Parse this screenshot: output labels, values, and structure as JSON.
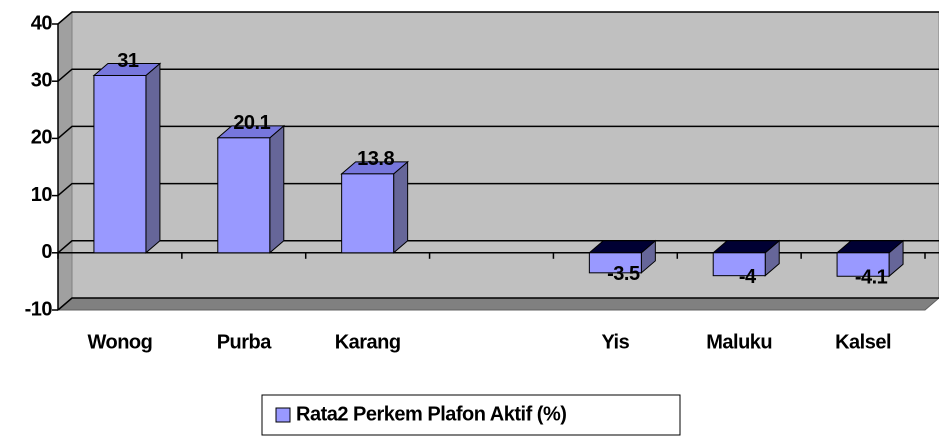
{
  "chart_data": {
    "type": "bar3d",
    "categories": [
      "Wonog",
      "Purba",
      "Karang",
      null,
      "Yis",
      "Maluku",
      "Kalsel"
    ],
    "series": [
      {
        "name": "Rata2 Perkem Plafon Aktif (%)",
        "color": "#9999ff",
        "values": [
          31,
          20.1,
          13.8,
          null,
          -3.5,
          -4,
          -4.1
        ]
      }
    ],
    "ylim": [
      -10,
      40
    ],
    "yticks": [
      -10,
      0,
      10,
      20,
      30,
      40
    ],
    "grid": true,
    "legend": "bottom"
  }
}
